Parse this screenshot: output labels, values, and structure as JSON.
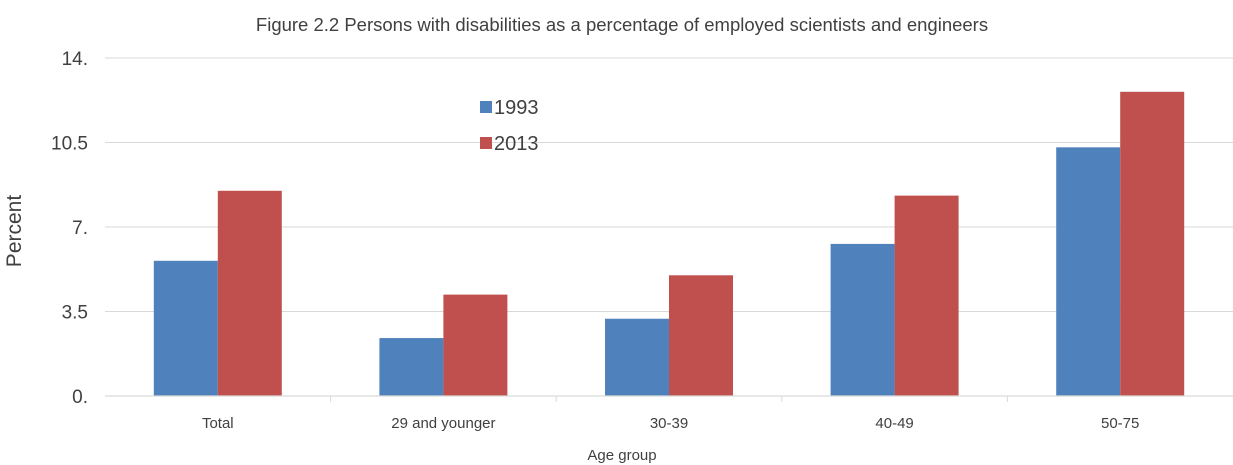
{
  "chart_data": {
    "type": "bar",
    "title": "Figure 2.2 Persons with disabilities as a percentage of employed scientists and engineers",
    "xlabel": "Age group",
    "ylabel": "Percent",
    "categories": [
      "Total",
      "29 and younger",
      "30-39",
      "40-49",
      "50-75"
    ],
    "series": [
      {
        "name": "1993",
        "values": [
          5.6,
          2.4,
          3.2,
          6.3,
          10.3
        ],
        "color": "#4f81bd"
      },
      {
        "name": "2013",
        "values": [
          8.5,
          4.2,
          5.0,
          8.3,
          12.6
        ],
        "color": "#c0504d"
      }
    ],
    "ylim": [
      0,
      14
    ],
    "yticks": [
      {
        "value": 0,
        "label": "0."
      },
      {
        "value": 3.5,
        "label": "3.5"
      },
      {
        "value": 7,
        "label": "7."
      },
      {
        "value": 10.5,
        "label": "10.5"
      },
      {
        "value": 14,
        "label": "14."
      }
    ],
    "grid": true,
    "legend": "upper-center",
    "colors": {
      "gridline": "#d9d9d9",
      "axis": "#d9d9d9",
      "text": "#404040"
    }
  }
}
